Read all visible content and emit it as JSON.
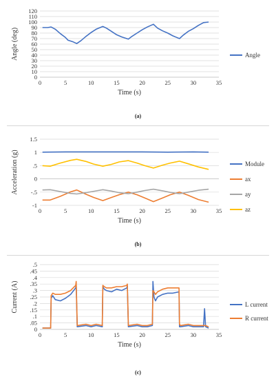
{
  "chart_data": [
    {
      "type": "line",
      "caption": "(a)",
      "xlabel": "Time (s)",
      "ylabel": "Angle (deg)",
      "xlim": [
        0,
        35
      ],
      "ylim": [
        0,
        120
      ],
      "xticks": [
        0,
        5,
        10,
        15,
        20,
        25,
        30,
        35
      ],
      "yticks": [
        0,
        10,
        20,
        30,
        40,
        50,
        60,
        70,
        80,
        90,
        100,
        110,
        120
      ],
      "grid": true,
      "legend": "right",
      "series": [
        {
          "name": "Angle",
          "color": "#4472C4",
          "x": [
            0.5,
            1.5,
            2.2,
            3,
            4,
            5,
            5.5,
            6.5,
            7.2,
            8,
            9,
            10,
            11,
            12.3,
            13,
            14,
            15,
            16,
            17.3,
            18,
            19,
            20,
            21,
            22.2,
            23,
            24,
            25,
            26,
            27.3,
            28,
            29,
            30,
            31,
            32,
            33
          ],
          "y": [
            90,
            90,
            91,
            87,
            79,
            72,
            67,
            64,
            61,
            66,
            74,
            81,
            87,
            92,
            89,
            83,
            77,
            73,
            69,
            74,
            80,
            86,
            91,
            96,
            89,
            84,
            80,
            75,
            70,
            76,
            83,
            88,
            94,
            99,
            100
          ]
        }
      ]
    },
    {
      "type": "line",
      "caption": "(b)",
      "xlabel": "Time (s)",
      "ylabel": "Acceleration (g)",
      "xlim": [
        0,
        35
      ],
      "ylim": [
        -1,
        1.5
      ],
      "xticks": [
        0,
        5,
        10,
        15,
        20,
        25,
        30,
        35
      ],
      "yticks": [
        -1,
        -0.5,
        0,
        0.5,
        1,
        1.5
      ],
      "grid": true,
      "legend": "right",
      "series": [
        {
          "name": "Module",
          "color": "#4472C4",
          "x": [
            0.5,
            5,
            10,
            15,
            20,
            25,
            30,
            33
          ],
          "y": [
            1.01,
            1.02,
            1.02,
            1.02,
            1.02,
            1.01,
            1.02,
            1.01
          ]
        },
        {
          "name": "ax",
          "color": "#ED7D31",
          "x": [
            0.5,
            2,
            4,
            6,
            7.2,
            9,
            10.5,
            12.3,
            14,
            15.5,
            17.3,
            19,
            20.5,
            22.2,
            24,
            25.5,
            27.3,
            29,
            31,
            33
          ],
          "y": [
            -0.8,
            -0.8,
            -0.66,
            -0.49,
            -0.42,
            -0.58,
            -0.7,
            -0.82,
            -0.7,
            -0.6,
            -0.5,
            -0.6,
            -0.72,
            -0.86,
            -0.72,
            -0.6,
            -0.5,
            -0.62,
            -0.78,
            -0.88
          ]
        },
        {
          "name": "ay",
          "color": "#A5A5A5",
          "x": [
            0.5,
            2,
            4,
            6,
            7.2,
            9,
            10.5,
            12.3,
            14,
            15.5,
            17.3,
            19,
            20.5,
            22.2,
            24,
            25.5,
            27.3,
            29,
            31,
            33
          ],
          "y": [
            -0.42,
            -0.41,
            -0.48,
            -0.55,
            -0.57,
            -0.52,
            -0.47,
            -0.41,
            -0.46,
            -0.52,
            -0.56,
            -0.5,
            -0.44,
            -0.39,
            -0.45,
            -0.51,
            -0.56,
            -0.5,
            -0.43,
            -0.39
          ]
        },
        {
          "name": "az",
          "color": "#FFC000",
          "x": [
            0.5,
            2,
            4,
            6,
            7.2,
            9,
            10.5,
            12.3,
            14,
            15.5,
            17.3,
            19,
            20.5,
            22.2,
            24,
            25.5,
            27.3,
            29,
            31,
            33
          ],
          "y": [
            0.5,
            0.48,
            0.6,
            0.7,
            0.74,
            0.66,
            0.56,
            0.48,
            0.55,
            0.64,
            0.69,
            0.6,
            0.5,
            0.41,
            0.52,
            0.6,
            0.67,
            0.57,
            0.45,
            0.36
          ]
        }
      ]
    },
    {
      "type": "line",
      "caption": "(c)",
      "xlabel": "Time (s)",
      "ylabel": "Current (A)",
      "xlim": [
        0,
        35
      ],
      "ylim": [
        0,
        0.5
      ],
      "xticks": [
        0,
        5,
        10,
        15,
        20,
        25,
        30,
        35
      ],
      "yticks": [
        0,
        0.05,
        0.1,
        0.15,
        0.2,
        0.25,
        0.3,
        0.35,
        0.4,
        0.45,
        0.5
      ],
      "grid": true,
      "legend": "right",
      "series": [
        {
          "name": "L current",
          "color": "#4472C4",
          "x": [
            0.5,
            2.1,
            2.2,
            2.5,
            3,
            4,
            5,
            6,
            7,
            7.1,
            7.3,
            9,
            10,
            11,
            12.2,
            12.3,
            12.6,
            13,
            14,
            15,
            16,
            17,
            17.1,
            17.3,
            19,
            20,
            21,
            22,
            22.1,
            22.3,
            22.6,
            23,
            24,
            25,
            26,
            27.2,
            27.3,
            27.5,
            29,
            30,
            31,
            32,
            32.2,
            32.4,
            33
          ],
          "y": [
            0.01,
            0.01,
            0.24,
            0.26,
            0.23,
            0.22,
            0.24,
            0.27,
            0.32,
            0.34,
            0.02,
            0.03,
            0.02,
            0.03,
            0.02,
            0.33,
            0.31,
            0.3,
            0.29,
            0.31,
            0.3,
            0.32,
            0.34,
            0.02,
            0.03,
            0.02,
            0.02,
            0.03,
            0.37,
            0.25,
            0.22,
            0.25,
            0.27,
            0.28,
            0.28,
            0.29,
            0.02,
            0.02,
            0.03,
            0.02,
            0.02,
            0.02,
            0.16,
            0.02,
            0.01
          ]
        },
        {
          "name": "R current",
          "color": "#ED7D31",
          "x": [
            0.5,
            2.1,
            2.2,
            2.5,
            3,
            4,
            5,
            6,
            7,
            7.1,
            7.3,
            9,
            10,
            11,
            12.2,
            12.3,
            12.6,
            13,
            14,
            15,
            16,
            17,
            17.1,
            17.3,
            19,
            20,
            21,
            22,
            22.1,
            22.3,
            22.6,
            23,
            24,
            25,
            26,
            27.2,
            27.3,
            27.5,
            29,
            30,
            31,
            32,
            32.2,
            32.4,
            33
          ],
          "y": [
            0.01,
            0.01,
            0.26,
            0.28,
            0.27,
            0.27,
            0.28,
            0.3,
            0.34,
            0.37,
            0.03,
            0.04,
            0.03,
            0.04,
            0.03,
            0.34,
            0.33,
            0.32,
            0.32,
            0.33,
            0.33,
            0.34,
            0.35,
            0.03,
            0.04,
            0.03,
            0.03,
            0.04,
            0.3,
            0.29,
            0.27,
            0.29,
            0.31,
            0.32,
            0.32,
            0.32,
            0.04,
            0.03,
            0.04,
            0.03,
            0.03,
            0.03,
            0.03,
            0.03,
            0.02
          ]
        }
      ]
    }
  ]
}
